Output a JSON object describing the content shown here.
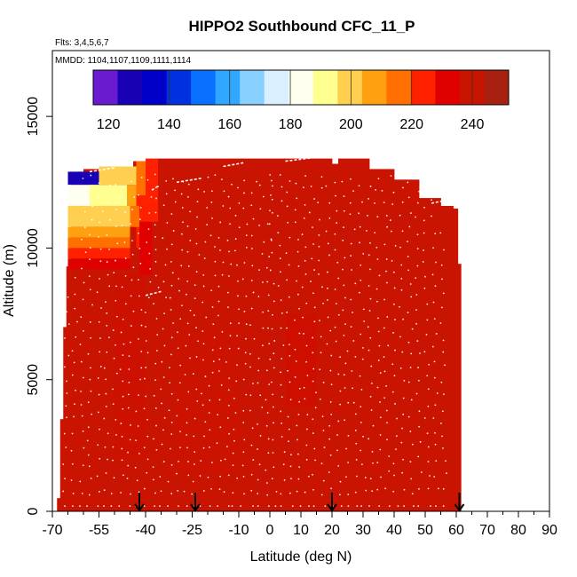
{
  "chart_data": {
    "type": "heatmap",
    "title": "HIPPO2 Southbound CFC_11_P",
    "annotations": [
      "Flts: 3,4,5,6,7",
      "MMDD: 1104,1107,1109,1111,1114"
    ],
    "xlabel": "Latitude (deg N)",
    "ylabel": "Altitude (m)",
    "xlim": [
      -70,
      90
    ],
    "ylim": [
      0,
      17500
    ],
    "x_ticks": [
      -70,
      -55,
      -40,
      -25,
      -10,
      0,
      10,
      20,
      30,
      40,
      50,
      60,
      70,
      80,
      90
    ],
    "x_tick_labels": [
      "-70",
      "-55",
      "-40",
      "-25",
      "-10",
      "0",
      "10",
      "20",
      "30",
      "40",
      "50",
      "60",
      "70",
      "80",
      "90"
    ],
    "x_minor_ticks": [
      -65,
      -60,
      -50,
      -45,
      -35,
      -30,
      -20,
      -15,
      -5,
      5,
      15,
      25,
      35,
      45,
      55,
      65,
      75,
      85
    ],
    "y_ticks": [
      0,
      5000,
      10000,
      15000
    ],
    "y_tick_labels": [
      "0",
      "5000",
      "10000",
      "15000"
    ],
    "colorbar": {
      "range": [
        115,
        252
      ],
      "ticks": [
        120,
        140,
        160,
        180,
        200,
        220,
        240
      ],
      "tick_labels": [
        "120",
        "140",
        "160",
        "180",
        "200",
        "220",
        "240"
      ],
      "dividers": [
        140,
        160,
        180,
        200,
        220,
        240
      ],
      "colors": [
        "#6a1bd0",
        "#1800b4",
        "#0000c8",
        "#0030e0",
        "#0a70ff",
        "#30a8ff",
        "#88d0ff",
        "#d8f0ff",
        "#fffff0",
        "#ffff90",
        "#ffd050",
        "#ffa010",
        "#ff7000",
        "#ff2000",
        "#e00000",
        "#c81400",
        "#a82010"
      ]
    },
    "flight_markers_lat": [
      -42,
      -24,
      20,
      61
    ],
    "columns": [
      {
        "lat_start": -68.5,
        "lat_end": -67.5,
        "top_alt": 500,
        "value": 238
      },
      {
        "lat_start": -67.5,
        "lat_end": -66.5,
        "top_alt": 3500,
        "value": 238
      },
      {
        "lat_start": -66.5,
        "lat_end": -65.5,
        "top_alt": 7000,
        "value": 238
      },
      {
        "lat_start": -65.5,
        "lat_end": -64.0,
        "top_alt": 9300,
        "value": 238
      },
      {
        "lat_start": -64.0,
        "lat_end": -62.0,
        "top_alt": 12500,
        "value": 238
      },
      {
        "lat_start": -62.0,
        "lat_end": -60.0,
        "top_alt": 12900,
        "value": 238
      },
      {
        "lat_start": -60.0,
        "lat_end": -50.0,
        "top_alt": 13000,
        "value": 238
      },
      {
        "lat_start": -50.0,
        "lat_end": -44.0,
        "top_alt": 13100,
        "value": 238
      },
      {
        "lat_start": -44.0,
        "lat_end": -36.0,
        "top_alt": 13300,
        "value": 238
      },
      {
        "lat_start": -36.0,
        "lat_end": 20.0,
        "top_alt": 13400,
        "value": 238
      },
      {
        "lat_start": 20.0,
        "lat_end": 22.0,
        "top_alt": 13200,
        "value": 238
      },
      {
        "lat_start": 22.0,
        "lat_end": 32.0,
        "top_alt": 13400,
        "value": 238
      },
      {
        "lat_start": 32.0,
        "lat_end": 40.0,
        "top_alt": 13000,
        "value": 238
      },
      {
        "lat_start": 40.0,
        "lat_end": 48.0,
        "top_alt": 12600,
        "value": 238
      },
      {
        "lat_start": 48.0,
        "lat_end": 55.0,
        "top_alt": 11900,
        "value": 238
      },
      {
        "lat_start": 55.0,
        "lat_end": 59.0,
        "top_alt": 11600,
        "value": 238
      },
      {
        "lat_start": 59.0,
        "lat_end": 60.5,
        "top_alt": 11500,
        "value": 238
      },
      {
        "lat_start": 60.5,
        "lat_end": 61.5,
        "top_alt": 9400,
        "value": 238
      }
    ],
    "stratosphere_patches": [
      {
        "lat_start": -65,
        "lat_end": -55,
        "alt_start": 12400,
        "alt_end": 12900,
        "value": 130
      },
      {
        "lat_start": -65,
        "lat_end": -55,
        "alt_start": 11600,
        "alt_end": 12400,
        "value": 182
      },
      {
        "lat_start": -58,
        "lat_end": -46,
        "alt_start": 11600,
        "alt_end": 12400,
        "value": 192
      },
      {
        "lat_start": -46,
        "lat_end": -43,
        "alt_start": 11600,
        "alt_end": 12400,
        "value": 210
      },
      {
        "lat_start": -43,
        "lat_end": -40,
        "alt_start": 12000,
        "alt_end": 13300,
        "value": 212
      },
      {
        "lat_start": -40,
        "lat_end": -36,
        "alt_start": 12300,
        "alt_end": 13400,
        "value": 220
      },
      {
        "lat_start": -40,
        "lat_end": -36,
        "alt_start": 11000,
        "alt_end": 12300,
        "value": 226
      },
      {
        "lat_start": -55,
        "lat_end": -43,
        "alt_start": 12400,
        "alt_end": 13100,
        "value": 200
      },
      {
        "lat_start": -43,
        "lat_end": -40,
        "alt_start": 10000,
        "alt_end": 12000,
        "value": 224
      },
      {
        "lat_start": -65,
        "lat_end": -45,
        "alt_start": 10800,
        "alt_end": 11600,
        "value": 200
      },
      {
        "lat_start": -45,
        "lat_end": -42,
        "alt_start": 10800,
        "alt_end": 11600,
        "value": 215
      },
      {
        "lat_start": -65,
        "lat_end": -45,
        "alt_start": 10400,
        "alt_end": 10800,
        "value": 210
      },
      {
        "lat_start": -65,
        "lat_end": -45,
        "alt_start": 10000,
        "alt_end": 10400,
        "value": 218
      },
      {
        "lat_start": -65,
        "lat_end": -45,
        "alt_start": 9600,
        "alt_end": 10000,
        "value": 226
      },
      {
        "lat_start": -65,
        "lat_end": -45,
        "alt_start": 9200,
        "alt_end": 9600,
        "value": 232
      },
      {
        "lat_start": -42,
        "lat_end": -38,
        "alt_start": 9000,
        "alt_end": 11000,
        "value": 230
      }
    ]
  }
}
